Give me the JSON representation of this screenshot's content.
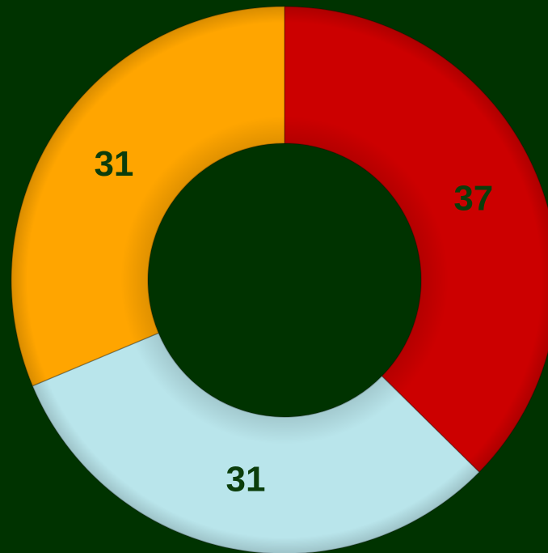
{
  "chart_data": {
    "type": "donut",
    "values": [
      37,
      31,
      31
    ],
    "colors": [
      "#cc0000",
      "#b9e5eb",
      "#ffa500"
    ]
  }
}
